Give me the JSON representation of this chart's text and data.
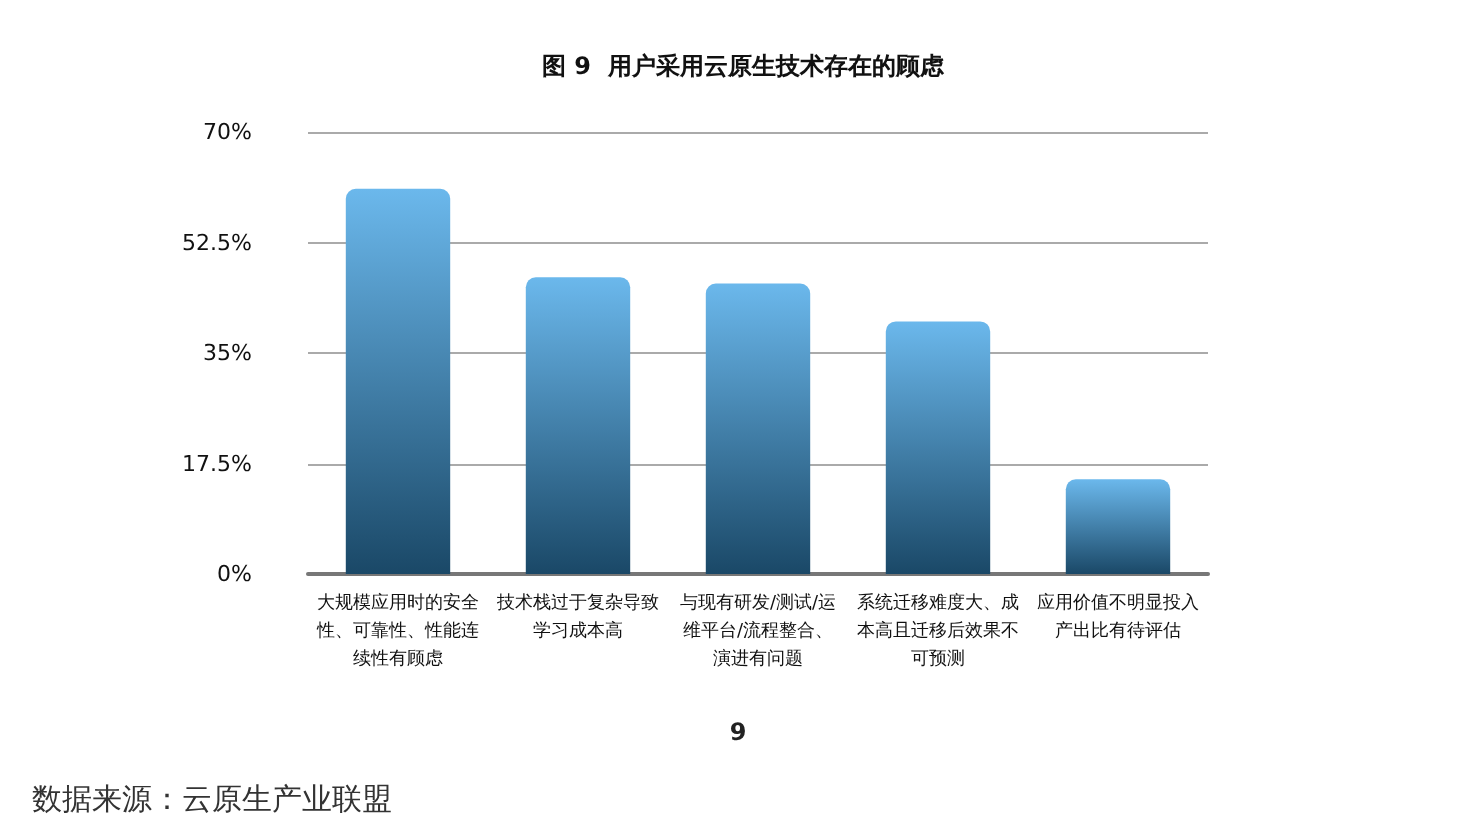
{
  "chart_data": {
    "type": "bar",
    "title": "图 9  用户采用云原生技术存在的顾虑",
    "categories": [
      "大规模应用时的安全性、可靠性、性能连续性有顾虑",
      "技术栈过于复杂导致学习成本高",
      "与现有研发/测试/运维平台/流程整合、演进有问题",
      "系统迁移难度大、成本高且迁移后效果不可预测",
      "应用价值不明显投入产出比有待评估"
    ],
    "values": [
      61,
      47,
      46,
      40,
      15
    ],
    "color": "#3aa0e6",
    "ylim": [
      0,
      70
    ],
    "yticks": [
      {
        "value": 0,
        "label": "0%"
      },
      {
        "value": 17.5,
        "label": "17.5%"
      },
      {
        "value": 35,
        "label": "35%"
      },
      {
        "value": 52.5,
        "label": "52.5%"
      },
      {
        "value": 70,
        "label": "70%"
      }
    ],
    "grid": "y",
    "annotations": [
      "9",
      "数据来源：云原生产业联盟"
    ]
  }
}
